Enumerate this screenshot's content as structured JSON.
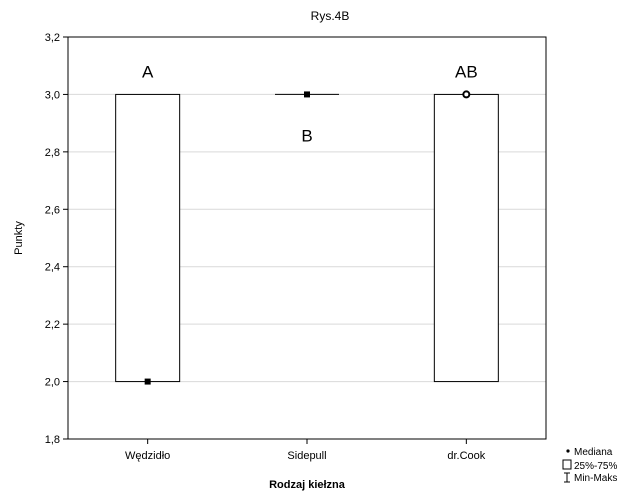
{
  "chart_data": {
    "type": "boxplot",
    "title": "Rys.4B",
    "xlabel": "Rodzaj kiełzna",
    "ylabel": "Punkty",
    "ylim": [
      1.8,
      3.2
    ],
    "yticks": [
      "1,8",
      "2,0",
      "2,2",
      "2,4",
      "2,6",
      "2,8",
      "3,0",
      "3,2"
    ],
    "grid": true,
    "categories": [
      "Wędzidło",
      "Sidepull",
      "dr.Cook"
    ],
    "boxes": [
      {
        "category": "Wędzidło",
        "median": 2.0,
        "q1": 2.0,
        "q3": 3.0,
        "min": 2.0,
        "max": 3.0,
        "group_label": "A"
      },
      {
        "category": "Sidepull",
        "median": 3.0,
        "q1": 3.0,
        "q3": 3.0,
        "min": 3.0,
        "max": 3.0,
        "group_label": "B"
      },
      {
        "category": "dr.Cook",
        "median": 3.0,
        "q1": 2.0,
        "q3": 3.0,
        "min": 2.0,
        "max": 3.0,
        "group_label": "AB"
      }
    ],
    "legend": {
      "placement": "bottom-right",
      "items": [
        "Mediana",
        "25%-75%",
        "Min-Maks"
      ]
    }
  }
}
